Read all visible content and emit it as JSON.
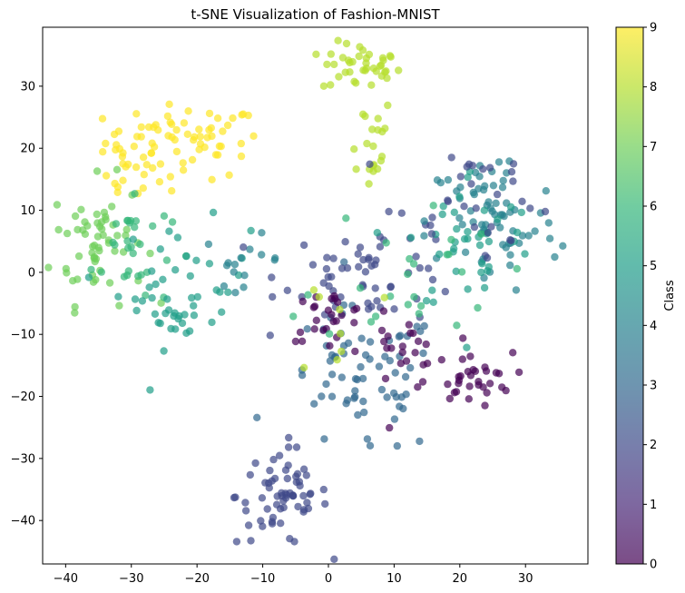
{
  "chart_data": {
    "type": "scatter",
    "title": "t-SNE Visualization of Fashion-MNIST",
    "xlabel": "",
    "ylabel": "",
    "xlim": [
      -43.5,
      39.5
    ],
    "ylim": [
      -47,
      39.5
    ],
    "xticks": [
      -40,
      -30,
      -20,
      -10,
      0,
      10,
      20,
      30
    ],
    "yticks": [
      -40,
      -30,
      -20,
      -10,
      0,
      10,
      20,
      30
    ],
    "grid": false,
    "colormap": "viridis",
    "point_alpha": 0.7,
    "colorbar": {
      "label": "Class",
      "range": [
        0,
        9
      ],
      "ticks": [
        0,
        1,
        2,
        3,
        4,
        5,
        6,
        7,
        8,
        9
      ],
      "colors": [
        "#440154",
        "#482878",
        "#3e4989",
        "#31688e",
        "#26828e",
        "#1f9e89",
        "#35b779",
        "#6ece58",
        "#b5de2b",
        "#fde725"
      ]
    },
    "clusters": [
      {
        "class": 9,
        "center": [
          -22,
          21
        ],
        "spread": [
          6,
          3
        ],
        "count": 70
      },
      {
        "class": 9,
        "center": [
          -31,
          16
        ],
        "spread": [
          2.5,
          2.5
        ],
        "count": 15
      },
      {
        "class": 8,
        "center": [
          5,
          33
        ],
        "spread": [
          3,
          2
        ],
        "count": 40
      },
      {
        "class": 8,
        "center": [
          6,
          21
        ],
        "spread": [
          2,
          4
        ],
        "count": 20
      },
      {
        "class": 7,
        "center": [
          -35,
          5
        ],
        "spread": [
          3.5,
          5
        ],
        "count": 60
      },
      {
        "class": 6,
        "center": [
          -30,
          4
        ],
        "spread": [
          3,
          5
        ],
        "count": 30
      },
      {
        "class": 5,
        "center": [
          -22,
          -2
        ],
        "spread": [
          5,
          5
        ],
        "count": 40
      },
      {
        "class": 4,
        "center": [
          -13,
          2
        ],
        "spread": [
          3,
          2
        ],
        "count": 15
      },
      {
        "class": 5,
        "center": [
          -23,
          -8
        ],
        "spread": [
          2,
          1
        ],
        "count": 10
      },
      {
        "class": 2,
        "center": [
          -7,
          -36
        ],
        "spread": [
          3.5,
          4
        ],
        "count": 65
      },
      {
        "class": 3,
        "center": [
          5,
          -18
        ],
        "spread": [
          6,
          6
        ],
        "count": 70
      },
      {
        "class": 2,
        "center": [
          7,
          0
        ],
        "spread": [
          7,
          4
        ],
        "count": 60
      },
      {
        "class": 0,
        "center": [
          0,
          -7
        ],
        "spread": [
          3,
          2
        ],
        "count": 25
      },
      {
        "class": 0,
        "center": [
          11,
          -13
        ],
        "spread": [
          3,
          3
        ],
        "count": 25
      },
      {
        "class": 0,
        "center": [
          22,
          -17
        ],
        "spread": [
          3,
          2
        ],
        "count": 30
      },
      {
        "class": 4,
        "center": [
          25,
          8
        ],
        "spread": [
          5,
          6
        ],
        "count": 70
      },
      {
        "class": 5,
        "center": [
          22,
          5
        ],
        "spread": [
          5,
          6
        ],
        "count": 40
      },
      {
        "class": 6,
        "center": [
          12,
          0
        ],
        "spread": [
          7,
          6
        ],
        "count": 25
      },
      {
        "class": 8,
        "center": [
          2,
          -8
        ],
        "spread": [
          3,
          5
        ],
        "count": 8
      },
      {
        "class": 2,
        "center": [
          22,
          12
        ],
        "spread": [
          6,
          5
        ],
        "count": 30
      }
    ]
  }
}
